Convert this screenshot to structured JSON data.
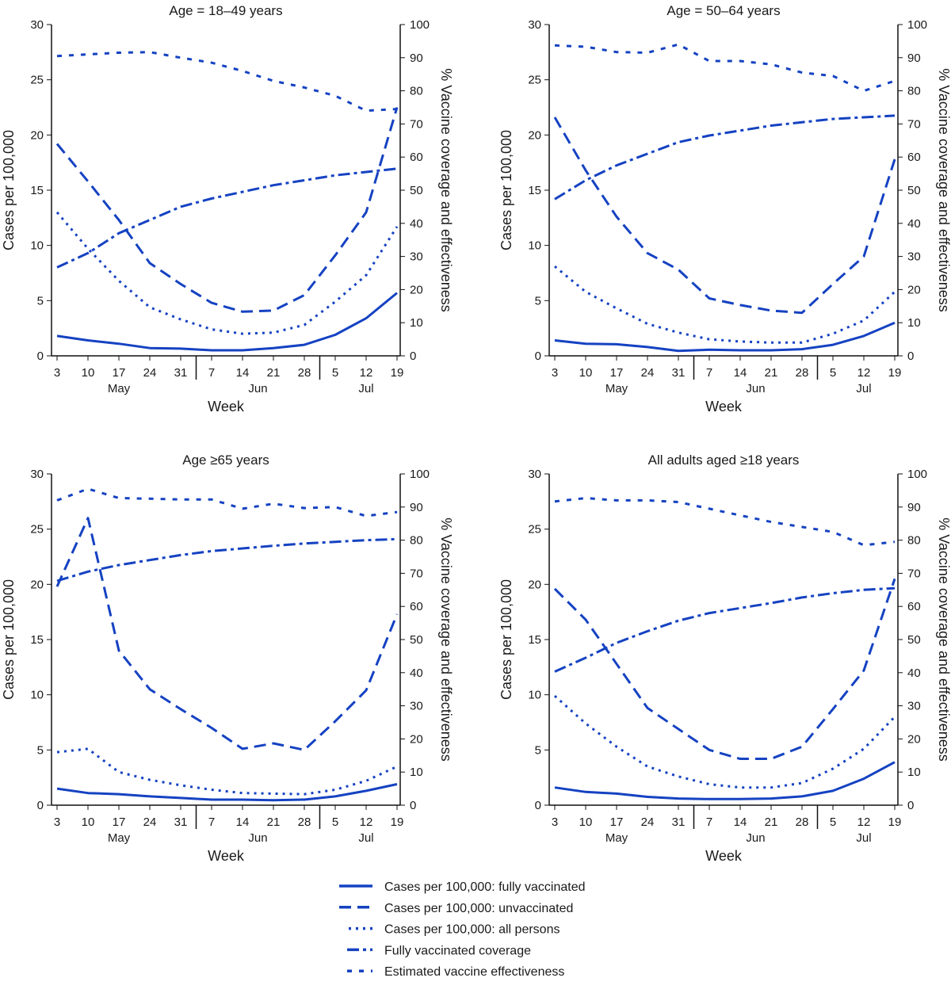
{
  "colors": {
    "line": "#1542c2",
    "axis": "#111111"
  },
  "legend": [
    {
      "key": "fully_vaccinated",
      "label": "Cases per 100,000: fully vaccinated",
      "style": "solid"
    },
    {
      "key": "unvaccinated",
      "label": "Cases per 100,000: unvaccinated",
      "style": "dashed"
    },
    {
      "key": "all_persons",
      "label": "Cases per 100,000: all persons",
      "style": "dotted"
    },
    {
      "key": "coverage",
      "label": "Fully vaccinated coverage",
      "style": "dash-dot"
    },
    {
      "key": "effectiveness",
      "label": "Estimated vaccine effectiveness",
      "style": "short-dash"
    }
  ],
  "chart_data": [
    {
      "type": "line",
      "title": "Age = 18–49 years",
      "xlabel": "Week",
      "ylabel": "Cases per 100,000",
      "y2label": "% Vaccine coverage and effectiveness",
      "x": [
        "3",
        "10",
        "17",
        "24",
        "31",
        "7",
        "14",
        "21",
        "28",
        "5",
        "12",
        "19"
      ],
      "months": [
        "May",
        "Jun",
        "Jul"
      ],
      "ylim": [
        0,
        30
      ],
      "y2lim": [
        0,
        100
      ],
      "series": {
        "fully_vaccinated": [
          1.8,
          1.4,
          1.1,
          0.7,
          0.65,
          0.5,
          0.5,
          0.7,
          1.0,
          1.9,
          3.4,
          5.7
        ],
        "unvaccinated": [
          19.2,
          15.8,
          12.3,
          8.4,
          6.5,
          4.8,
          4.0,
          4.1,
          5.5,
          9.1,
          13.0,
          22.5
        ],
        "all_persons": [
          13.0,
          9.7,
          6.8,
          4.4,
          3.3,
          2.4,
          2.0,
          2.1,
          2.8,
          4.9,
          7.3,
          11.7
        ],
        "coverage": [
          26.7,
          31,
          37,
          41,
          45,
          47.5,
          49.5,
          51.5,
          53,
          54.5,
          55.5,
          56.5
        ],
        "effectiveness": [
          90.5,
          91,
          91.5,
          91.7,
          90,
          88.5,
          86,
          83,
          81,
          78.5,
          74,
          74.5
        ]
      }
    },
    {
      "type": "line",
      "title": "Age = 50–64 years",
      "xlabel": "Week",
      "ylabel": "Cases per 100,000",
      "y2label": "% Vaccine coverage and effectiveness",
      "x": [
        "3",
        "10",
        "17",
        "24",
        "31",
        "7",
        "14",
        "21",
        "28",
        "5",
        "12",
        "19"
      ],
      "months": [
        "May",
        "Jun",
        "Jul"
      ],
      "ylim": [
        0,
        30
      ],
      "y2lim": [
        0,
        100
      ],
      "series": {
        "fully_vaccinated": [
          1.4,
          1.1,
          1.05,
          0.8,
          0.45,
          0.55,
          0.5,
          0.5,
          0.6,
          1.0,
          1.8,
          3.0
        ],
        "unvaccinated": [
          21.6,
          16.8,
          12.6,
          9.3,
          7.8,
          5.2,
          4.6,
          4.1,
          3.9,
          6.5,
          9.0,
          17.8
        ],
        "all_persons": [
          8.1,
          5.8,
          4.3,
          2.9,
          2.1,
          1.5,
          1.3,
          1.2,
          1.2,
          2.0,
          3.2,
          5.8
        ],
        "coverage": [
          47.3,
          53,
          57.5,
          61,
          64.5,
          66.5,
          68,
          69.5,
          70.5,
          71.5,
          72,
          72.5
        ],
        "effectiveness": [
          93.7,
          93.3,
          91.7,
          91.5,
          94,
          89,
          89,
          88,
          85.5,
          84.5,
          80,
          83
        ]
      }
    },
    {
      "type": "line",
      "title": "Age ≥65 years",
      "xlabel": "Week",
      "ylabel": "Cases per 100,000",
      "y2label": "% Vaccine coverage and effectiveness",
      "x": [
        "3",
        "10",
        "17",
        "24",
        "31",
        "7",
        "14",
        "21",
        "28",
        "5",
        "12",
        "19"
      ],
      "months": [
        "May",
        "Jun",
        "Jul"
      ],
      "ylim": [
        0,
        30
      ],
      "y2lim": [
        0,
        100
      ],
      "series": {
        "fully_vaccinated": [
          1.5,
          1.1,
          1.0,
          0.8,
          0.65,
          0.5,
          0.5,
          0.45,
          0.5,
          0.8,
          1.3,
          1.9
        ],
        "unvaccinated": [
          19.8,
          26.0,
          14.0,
          10.5,
          8.7,
          7.0,
          5.1,
          5.6,
          5.0,
          7.6,
          10.4,
          17.3
        ],
        "all_persons": [
          4.8,
          5.1,
          3.0,
          2.3,
          1.8,
          1.4,
          1.1,
          1.05,
          1.0,
          1.4,
          2.2,
          3.5
        ],
        "coverage": [
          67.7,
          70.5,
          72.5,
          74,
          75.5,
          76.7,
          77.5,
          78.3,
          79,
          79.5,
          80,
          80.3
        ],
        "effectiveness": [
          92,
          95.5,
          92.7,
          92.5,
          92.3,
          92.3,
          89.5,
          91,
          89.7,
          90,
          87.3,
          88.5
        ]
      }
    },
    {
      "type": "line",
      "title": "All adults aged ≥18 years",
      "xlabel": "Week",
      "ylabel": "Cases per 100,000",
      "y2label": "% Vaccine coverage and effectiveness",
      "x": [
        "3",
        "10",
        "17",
        "24",
        "31",
        "7",
        "14",
        "21",
        "28",
        "5",
        "12",
        "19"
      ],
      "months": [
        "May",
        "Jun",
        "Jul"
      ],
      "ylim": [
        0,
        30
      ],
      "y2lim": [
        0,
        100
      ],
      "series": {
        "fully_vaccinated": [
          1.6,
          1.2,
          1.05,
          0.75,
          0.6,
          0.55,
          0.55,
          0.6,
          0.8,
          1.3,
          2.4,
          3.9
        ],
        "unvaccinated": [
          19.6,
          16.8,
          12.8,
          8.8,
          6.9,
          5.0,
          4.2,
          4.2,
          5.3,
          8.7,
          12.2,
          20.5
        ],
        "all_persons": [
          9.9,
          7.4,
          5.3,
          3.5,
          2.6,
          1.9,
          1.6,
          1.6,
          2.0,
          3.3,
          5.1,
          8.0
        ],
        "coverage": [
          40.3,
          44.5,
          49,
          52.5,
          55.7,
          58,
          59.5,
          61,
          62.7,
          64,
          65,
          65.5
        ],
        "effectiveness": [
          91.7,
          92.7,
          92,
          92,
          91.5,
          89.5,
          87.5,
          85.5,
          84,
          82.5,
          78.5,
          79.5
        ]
      }
    }
  ]
}
